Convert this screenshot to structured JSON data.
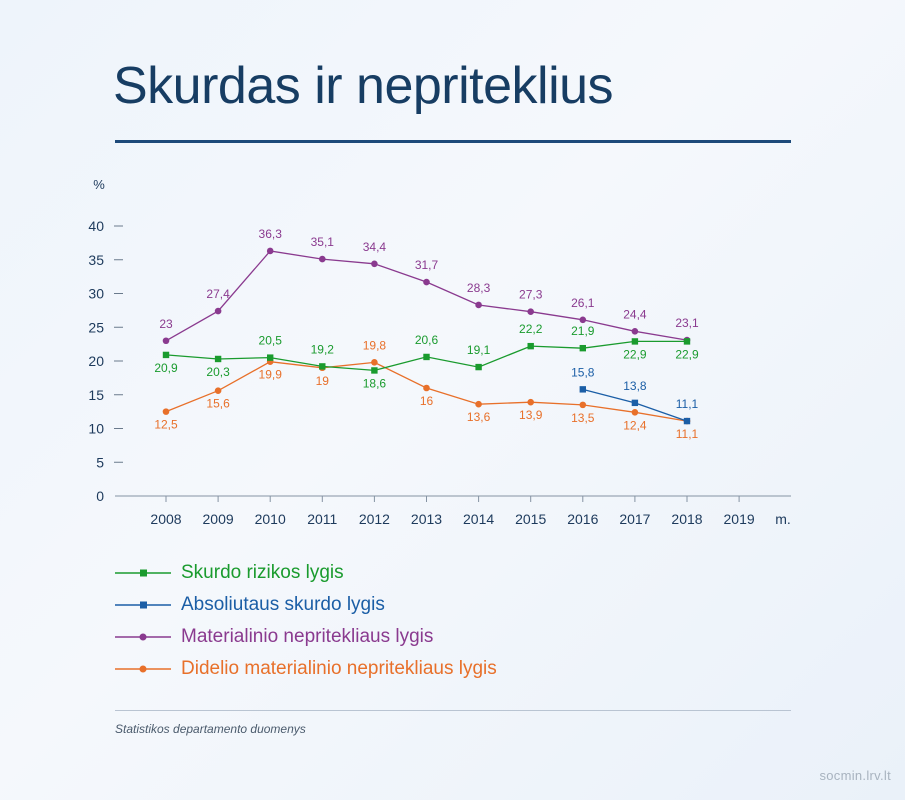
{
  "header": {
    "title": "Skurdas ir nepriteklius"
  },
  "footer": {
    "source": "Statistikos departamento duomenys",
    "site": "socmin.lrv.lt"
  },
  "chart_data": {
    "type": "line",
    "ylabel": "%",
    "xlabel": "m.",
    "ylim": [
      0,
      40
    ],
    "yticks": [
      0,
      5,
      10,
      15,
      20,
      25,
      30,
      35,
      40
    ],
    "x": [
      2008,
      2009,
      2010,
      2011,
      2012,
      2013,
      2014,
      2015,
      2016,
      2017,
      2018,
      2019
    ],
    "grid": false,
    "legend_position": "bottom",
    "series": [
      {
        "name": "Skurdo rizikos lygis",
        "color": "#1a9b2e",
        "marker": "square",
        "values": [
          20.9,
          20.3,
          20.5,
          19.2,
          18.6,
          20.6,
          19.1,
          22.2,
          21.9,
          22.9,
          22.9,
          null
        ],
        "labels": [
          "20,9",
          "20,3",
          "20,5",
          "19,2",
          "18,6",
          "20,6",
          "19,1",
          "22,2",
          "21,9",
          "22,9",
          "22,9",
          null
        ]
      },
      {
        "name": "Absoliutaus skurdo lygis",
        "color": "#1b5ea6",
        "marker": "square",
        "values": [
          null,
          null,
          null,
          null,
          null,
          null,
          null,
          null,
          15.8,
          13.8,
          11.1,
          null
        ],
        "labels": [
          null,
          null,
          null,
          null,
          null,
          null,
          null,
          null,
          "15,8",
          "13,8",
          "11,1",
          null
        ]
      },
      {
        "name": "Materialinio nepritekliaus lygis",
        "color": "#8a3a8f",
        "marker": "circle",
        "values": [
          23,
          27.4,
          36.3,
          35.1,
          34.4,
          31.7,
          28.3,
          27.3,
          26.1,
          24.4,
          23.1,
          null
        ],
        "labels": [
          "23",
          "27,4",
          "36,3",
          "35,1",
          "34,4",
          "31,7",
          "28,3",
          "27,3",
          "26,1",
          "24,4",
          "23,1",
          null
        ]
      },
      {
        "name": "Didelio materialinio nepritekliaus lygis",
        "color": "#e8702a",
        "marker": "circle",
        "values": [
          12.5,
          15.6,
          19.9,
          19,
          19.8,
          16,
          13.6,
          13.9,
          13.5,
          12.4,
          11.1,
          null
        ],
        "labels": [
          "12,5",
          "15,6",
          "19,9",
          "19",
          "19,8",
          "16",
          "13,6",
          "13,9",
          "13,5",
          "12,4",
          "11,1",
          null
        ]
      }
    ]
  }
}
